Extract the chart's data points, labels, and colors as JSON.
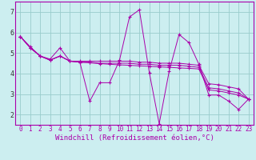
{
  "xlabel": "Windchill (Refroidissement éolien,°C)",
  "background_color": "#cceef0",
  "line_color": "#aa00aa",
  "grid_color": "#99cccc",
  "xlim": [
    -0.5,
    23.5
  ],
  "ylim": [
    1.5,
    7.5
  ],
  "yticks": [
    2,
    3,
    4,
    5,
    6,
    7
  ],
  "xticks": [
    0,
    1,
    2,
    3,
    4,
    5,
    6,
    7,
    8,
    9,
    10,
    11,
    12,
    13,
    14,
    15,
    16,
    17,
    18,
    19,
    20,
    21,
    22,
    23
  ],
  "series": [
    [
      5.8,
      5.3,
      4.85,
      4.7,
      5.25,
      4.6,
      4.55,
      2.65,
      3.55,
      3.55,
      4.65,
      6.75,
      7.1,
      4.05,
      1.55,
      4.1,
      5.9,
      5.5,
      4.45,
      2.95,
      2.95,
      2.65,
      2.25,
      2.75
    ],
    [
      5.8,
      5.25,
      4.85,
      4.65,
      4.85,
      4.6,
      4.6,
      4.6,
      4.6,
      4.6,
      4.6,
      4.6,
      4.55,
      4.55,
      4.5,
      4.5,
      4.5,
      4.45,
      4.4,
      3.5,
      3.45,
      3.35,
      3.25,
      2.75
    ],
    [
      5.8,
      5.25,
      4.85,
      4.65,
      4.85,
      4.6,
      4.55,
      4.55,
      4.5,
      4.5,
      4.5,
      4.5,
      4.45,
      4.45,
      4.4,
      4.4,
      4.4,
      4.35,
      4.3,
      3.3,
      3.25,
      3.15,
      3.05,
      2.75
    ],
    [
      5.8,
      5.25,
      4.85,
      4.65,
      4.85,
      4.6,
      4.55,
      4.52,
      4.48,
      4.45,
      4.42,
      4.4,
      4.37,
      4.35,
      4.32,
      4.3,
      4.27,
      4.25,
      4.22,
      3.2,
      3.15,
      3.05,
      2.95,
      2.75
    ]
  ],
  "tick_fontsize": 5.5,
  "xlabel_fontsize": 6.5
}
